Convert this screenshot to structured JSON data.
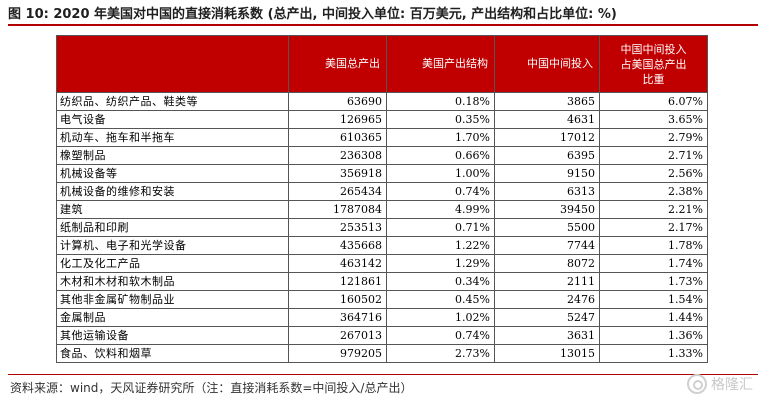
{
  "figure": {
    "title": "图 10: 2020 年美国对中国的直接消耗系数 (总产出, 中间投入单位: 百万美元, 产出结构和占比单位: %)",
    "source": "资料来源：wind，天风证券研究所（注：直接消耗系数=中间投入/总产出）",
    "watermark": "格隆汇",
    "accent_color": "#c00000"
  },
  "table": {
    "headers": [
      "",
      "美国总产出",
      "美国产出结构",
      "中国中间投入",
      "中国中间投入\n占美国总产出\n比重"
    ],
    "rows": [
      [
        "纺织品、纺织产品、鞋类等",
        "63690",
        "0.18%",
        "3865",
        "6.07%"
      ],
      [
        "电气设备",
        "126965",
        "0.35%",
        "4631",
        "3.65%"
      ],
      [
        "机动车、拖车和半拖车",
        "610365",
        "1.70%",
        "17012",
        "2.79%"
      ],
      [
        "橡塑制品",
        "236308",
        "0.66%",
        "6395",
        "2.71%"
      ],
      [
        "机械设备等",
        "356918",
        "1.00%",
        "9150",
        "2.56%"
      ],
      [
        "机械设备的维修和安装",
        "265434",
        "0.74%",
        "6313",
        "2.38%"
      ],
      [
        "建筑",
        "1787084",
        "4.99%",
        "39450",
        "2.21%"
      ],
      [
        "纸制品和印刷",
        "253513",
        "0.71%",
        "5500",
        "2.17%"
      ],
      [
        "计算机、电子和光学设备",
        "435668",
        "1.22%",
        "7744",
        "1.78%"
      ],
      [
        "化工及化工产品",
        "463142",
        "1.29%",
        "8072",
        "1.74%"
      ],
      [
        "木材和木材和软木制品",
        "121861",
        "0.34%",
        "2111",
        "1.73%"
      ],
      [
        "其他非金属矿物制品业",
        "160502",
        "0.45%",
        "2476",
        "1.54%"
      ],
      [
        "金属制品",
        "364716",
        "1.02%",
        "5247",
        "1.44%"
      ],
      [
        "其他运输设备",
        "267013",
        "0.74%",
        "3631",
        "1.36%"
      ],
      [
        "食品、饮料和烟草",
        "979205",
        "2.73%",
        "13015",
        "1.33%"
      ]
    ]
  }
}
